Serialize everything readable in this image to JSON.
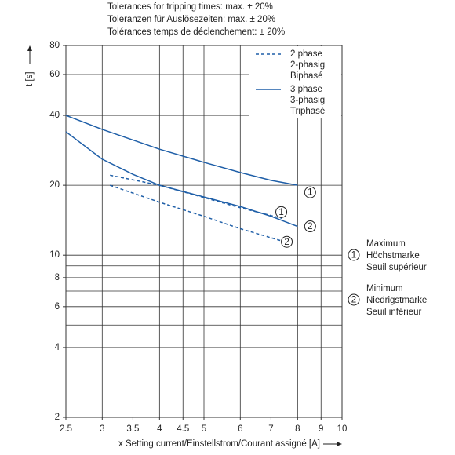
{
  "chart_data": {
    "type": "line",
    "title_lines": [
      "Tolerances for tripping times: max. ± 20%",
      "Toleranzen für Auslösezeiten: max. ± 20%",
      "Tolérances temps de déclenchement: ± 20%"
    ],
    "x_label": "x Setting current/Einstellstrom/Courant assigné [A]",
    "y_label": "t [s]",
    "xscale": "log",
    "yscale": "log",
    "xlim": [
      2.5,
      10
    ],
    "ylim": [
      2,
      80
    ],
    "xticks": [
      2.5,
      3,
      3.5,
      4,
      4.5,
      5,
      6,
      7,
      8,
      9,
      10
    ],
    "yticks": [
      2,
      4,
      6,
      8,
      10,
      20,
      40,
      60,
      80
    ],
    "ygrid": [
      2,
      4,
      5,
      6,
      7,
      8,
      9,
      10,
      20,
      40,
      60,
      80
    ],
    "grid": true,
    "legend": "top-right",
    "series": [
      {
        "name": [
          "2 phase",
          "2-phasig",
          "Biphasé"
        ],
        "style": "dashed",
        "color": "#1f5fa8",
        "curves": [
          {
            "marker": "1",
            "x": [
              3.12,
              4,
              5,
              6,
              7.4
            ],
            "values": [
              22.1,
              20,
              17.7,
              16,
              14.4
            ]
          },
          {
            "marker": "2",
            "x": [
              3.12,
              4,
              5,
              6,
              7.4
            ],
            "values": [
              20,
              16.9,
              14.7,
              13,
              11.5
            ]
          }
        ]
      },
      {
        "name": [
          "3 phase",
          "3-phasig",
          "Triphasé"
        ],
        "style": "solid",
        "color": "#1f5fa8",
        "curves": [
          {
            "marker": "1",
            "x": [
              2.5,
              3,
              4,
              5,
              6,
              7,
              8
            ],
            "values": [
              40,
              34.8,
              28.6,
              25.1,
              22.7,
              21,
              20
            ]
          },
          {
            "marker": "2",
            "x": [
              2.5,
              3,
              3.5,
              4,
              5,
              6,
              7,
              8
            ],
            "values": [
              34,
              25.9,
              22.3,
              20,
              17.8,
              16.2,
              14.7,
              13.3
            ]
          }
        ]
      }
    ],
    "annotations": [
      {
        "marker": "1",
        "lines": [
          "Maximum",
          "Höchstmarke",
          "Seuil supérieur"
        ]
      },
      {
        "marker": "2",
        "lines": [
          "Minimum",
          "Niedrigstmarke",
          "Seuil inférieur"
        ]
      }
    ]
  }
}
